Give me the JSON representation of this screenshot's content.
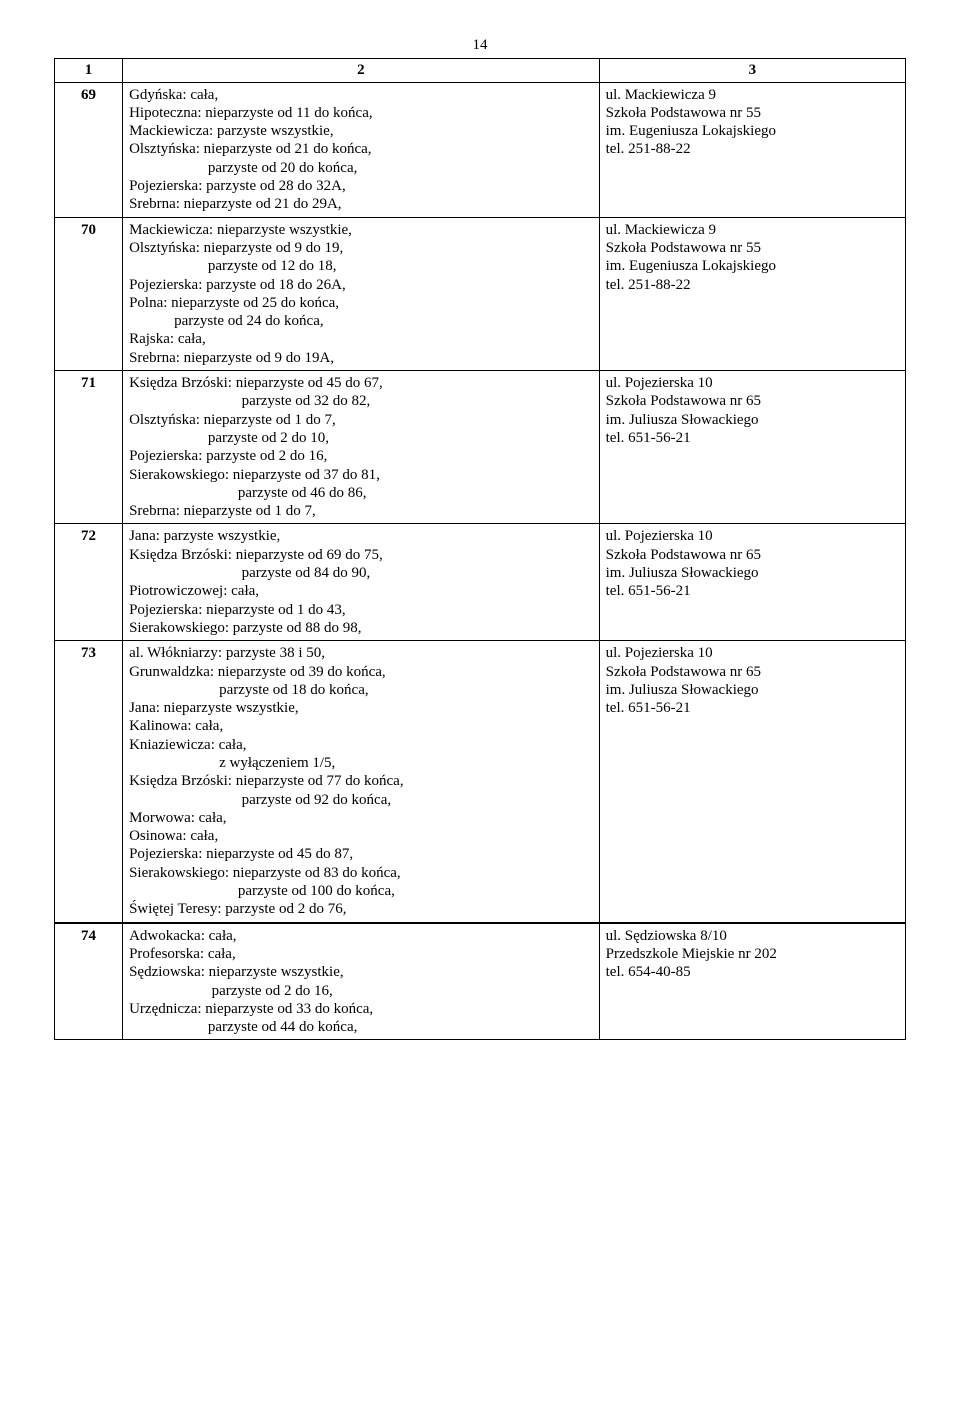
{
  "page_number": "14",
  "header": {
    "c1": "1",
    "c2": "2",
    "c3": "3"
  },
  "rows": [
    {
      "num": "69",
      "col2": "Gdyńska: cała,\nHipoteczna: nieparzyste od 11 do końca,\nMackiewicza: parzyste wszystkie,\nOlsztyńska: nieparzyste od 21 do końca,\n                     parzyste od 20 do końca,\nPojezierska: parzyste od 28 do 32A,\nSrebrna: nieparzyste od 21 do 29A,",
      "col3": "ul. Mackiewicza 9\nSzkoła Podstawowa nr 55\nim. Eugeniusza Lokajskiego\ntel. 251-88-22"
    },
    {
      "num": "70",
      "col2": "Mackiewicza: nieparzyste wszystkie,\nOlsztyńska: nieparzyste od 9 do 19,\n                     parzyste od 12 do 18,\nPojezierska: parzyste od 18 do 26A,\nPolna: nieparzyste od 25 do końca,\n            parzyste od 24 do końca,\nRajska: cała,\nSrebrna: nieparzyste od 9 do 19A,",
      "col3": "ul. Mackiewicza 9\nSzkoła Podstawowa nr 55\nim. Eugeniusza Lokajskiego\ntel. 251-88-22"
    },
    {
      "num": "71",
      "col2": "Księdza Brzóski: nieparzyste od 45 do 67,\n                              parzyste od 32 do 82,\nOlsztyńska: nieparzyste od 1 do 7,\n                     parzyste od 2 do 10,\nPojezierska: parzyste od 2 do 16,\nSierakowskiego: nieparzyste od 37 do 81,\n                             parzyste od 46 do 86,\nSrebrna: nieparzyste od 1 do 7,",
      "col3": "ul. Pojezierska 10\nSzkoła Podstawowa nr 65\nim. Juliusza Słowackiego\ntel. 651-56-21"
    },
    {
      "num": "72",
      "col2": "Jana: parzyste wszystkie,\nKsiędza Brzóski: nieparzyste od 69 do 75,\n                              parzyste od 84 do 90,\nPiotrowiczowej: cała,\nPojezierska: nieparzyste od 1 do 43,\nSierakowskiego: parzyste od 88 do 98,",
      "col3": "ul. Pojezierska 10\nSzkoła Podstawowa nr 65\nim. Juliusza Słowackiego\ntel. 651-56-21"
    },
    {
      "num": "73",
      "col2": "al. Włókniarzy: parzyste 38 i 50,\nGrunwaldzka: nieparzyste od 39 do końca,\n                        parzyste od 18 do końca,\nJana: nieparzyste wszystkie,\nKalinowa: cała,\nKniaziewicza: cała,\n                        z wyłączeniem 1/5,\nKsiędza Brzóski: nieparzyste od 77 do końca,\n                              parzyste od 92 do końca,\nMorwowa: cała,\nOsinowa: cała,\nPojezierska: nieparzyste od 45 do 87,\nSierakowskiego: nieparzyste od 83 do końca,\n                             parzyste od 100 do końca,\nŚwiętej Teresy: parzyste od 2 do 76,",
      "col3": "ul. Pojezierska 10\nSzkoła Podstawowa nr 65\nim. Juliusza Słowackiego\ntel. 651-56-21",
      "thick_bottom": true
    },
    {
      "num": "74",
      "col2": "Adwokacka: cała,\nProfesorska: cała,\nSędziowska: nieparzyste wszystkie,\n                      parzyste od 2 do 16,\nUrzędnicza: nieparzyste od 33 do końca,\n                     parzyste od 44 do końca,",
      "col3": "ul. Sędziowska 8/10\nPrzedszkole Miejskie nr 202\ntel. 654-40-85",
      "thick_top": true
    }
  ]
}
